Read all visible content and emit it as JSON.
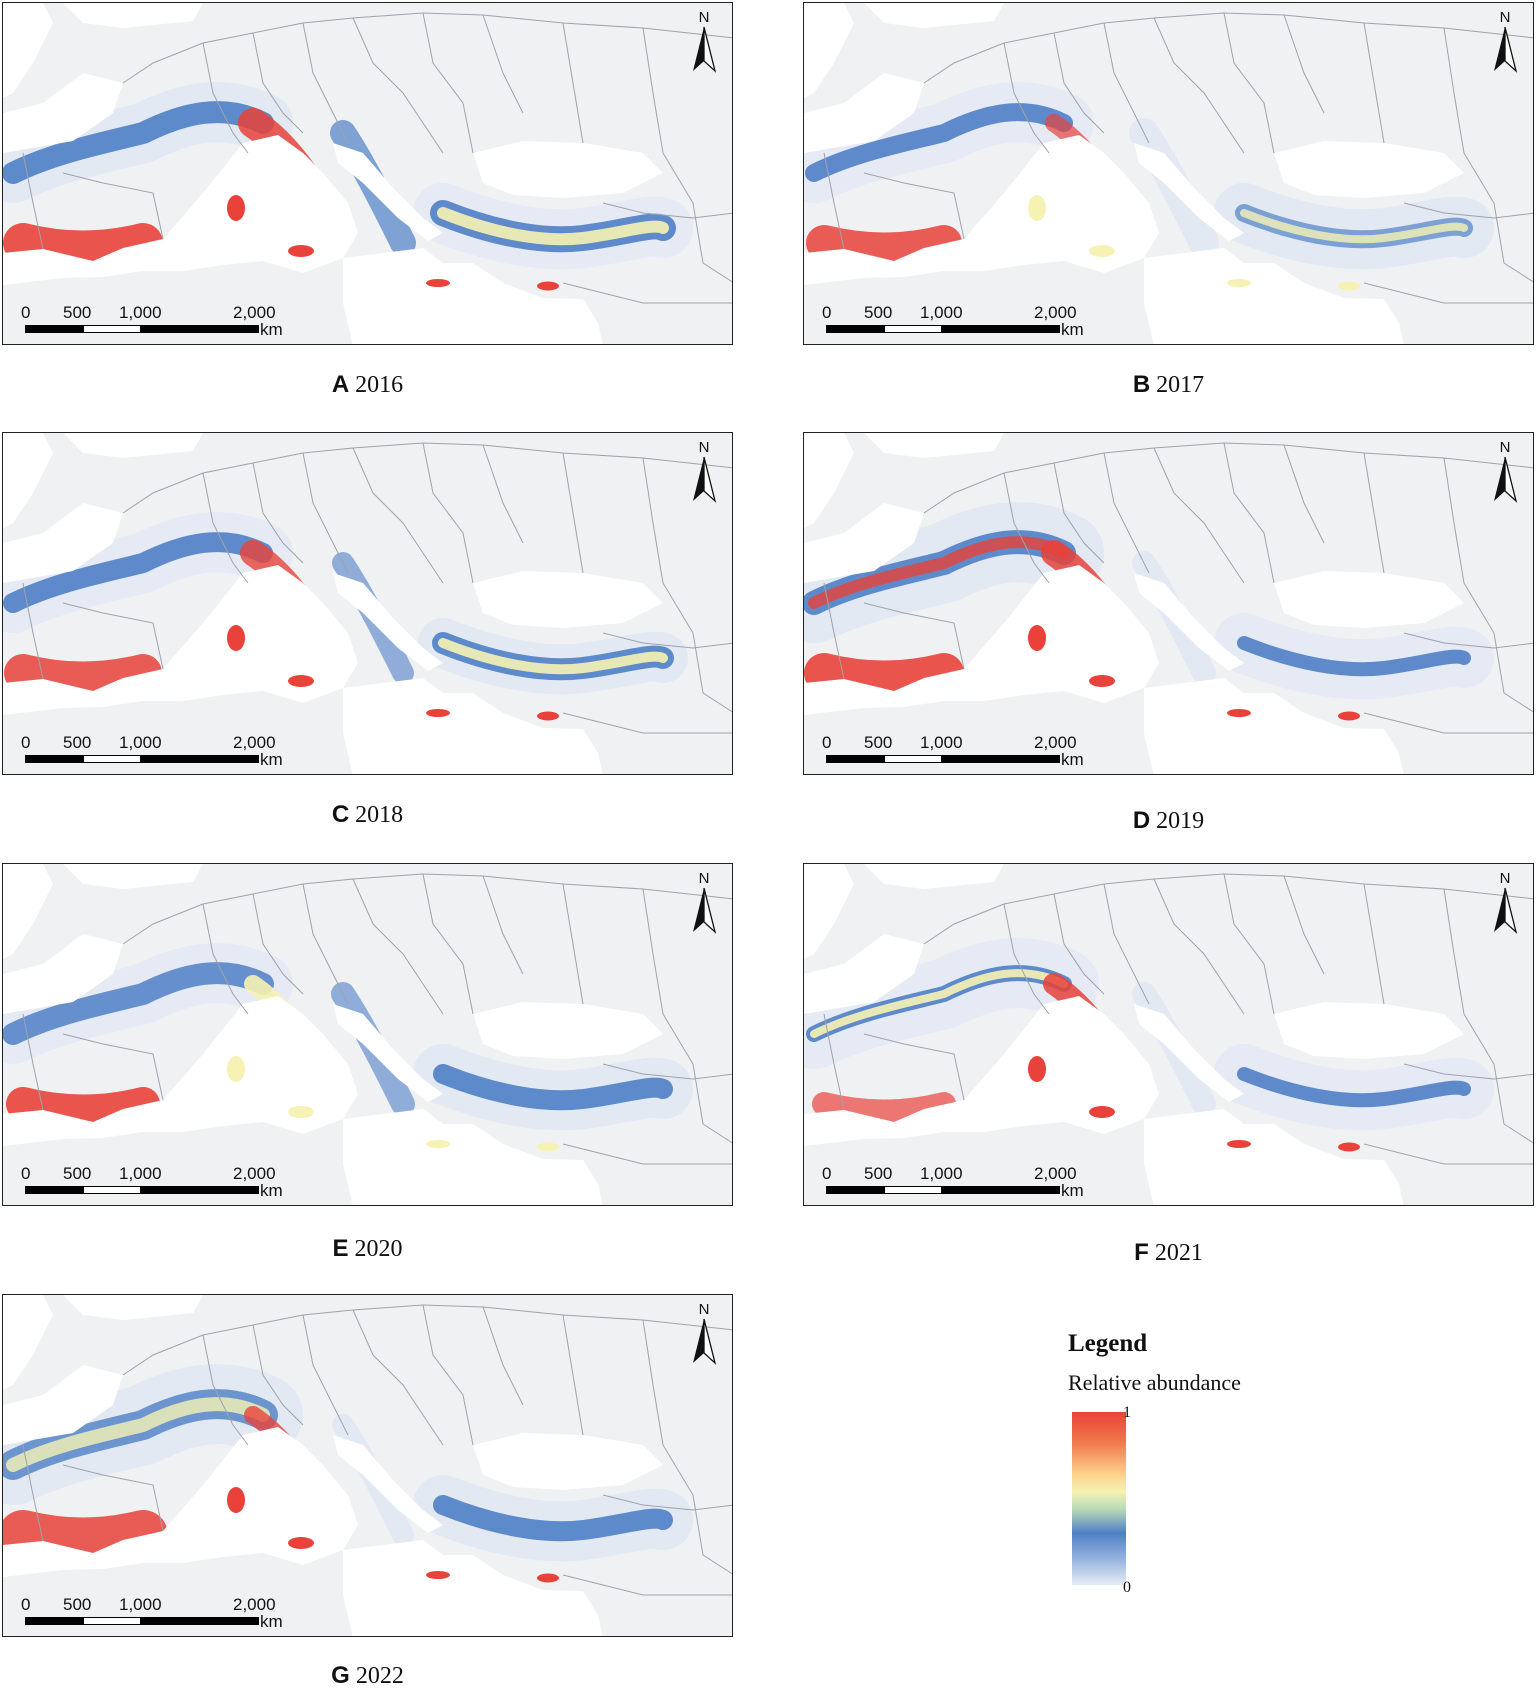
{
  "panels": [
    {
      "letter": "A",
      "year": "2016"
    },
    {
      "letter": "B",
      "year": "2017"
    },
    {
      "letter": "C",
      "year": "2018"
    },
    {
      "letter": "D",
      "year": "2019"
    },
    {
      "letter": "E",
      "year": "2020"
    },
    {
      "letter": "F",
      "year": "2021"
    },
    {
      "letter": "G",
      "year": "2022"
    }
  ],
  "north_label": "N",
  "scale": {
    "labels": [
      "0",
      "500",
      "1,000",
      "2,000"
    ],
    "unit": "km"
  },
  "legend": {
    "title": "Legend",
    "subtitle": "Relative abundance",
    "max_label": "1",
    "min_label": "0"
  },
  "colors": {
    "land": "#f0f1f3",
    "borders": "#9ea3aa",
    "sea": "#ffffff",
    "low": "#dfe7f3",
    "mid": "#4f80c6",
    "high_yellow": "#f6f2b3",
    "high": "#e8423a"
  }
}
